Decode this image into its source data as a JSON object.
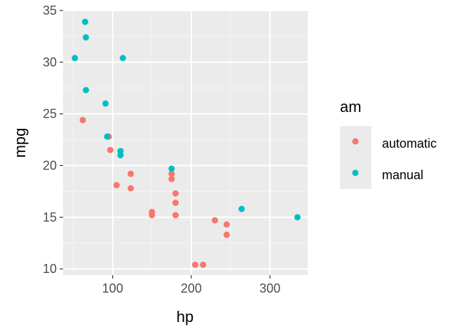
{
  "chart_data": {
    "type": "scatter",
    "xlabel": "hp",
    "ylabel": "mpg",
    "xlim": [
      37,
      348
    ],
    "ylim": [
      9.4,
      35.0
    ],
    "xticks": [
      100,
      200,
      300
    ],
    "yticks": [
      10,
      15,
      20,
      25,
      30,
      35
    ],
    "grid": true,
    "legend": {
      "title": "am",
      "position": "right",
      "entries": [
        {
          "label": "automatic",
          "color": "#F8766D"
        },
        {
          "label": "manual",
          "color": "#00BFC4"
        }
      ]
    },
    "series": [
      {
        "name": "automatic",
        "color": "#F8766D",
        "points": [
          [
            110,
            21.4
          ],
          [
            175,
            18.7
          ],
          [
            105,
            18.1
          ],
          [
            245,
            14.3
          ],
          [
            62,
            24.4
          ],
          [
            95,
            22.8
          ],
          [
            123,
            19.2
          ],
          [
            123,
            17.8
          ],
          [
            180,
            16.4
          ],
          [
            180,
            17.3
          ],
          [
            180,
            15.2
          ],
          [
            205,
            10.4
          ],
          [
            215,
            10.4
          ],
          [
            97,
            21.5
          ],
          [
            150,
            15.5
          ],
          [
            150,
            15.2
          ],
          [
            245,
            13.3
          ],
          [
            175,
            19.2
          ],
          [
            230,
            14.7
          ]
        ]
      },
      {
        "name": "manual",
        "color": "#00BFC4",
        "points": [
          [
            110,
            21.0
          ],
          [
            110,
            21.4
          ],
          [
            93,
            22.8
          ],
          [
            66,
            32.4
          ],
          [
            52,
            30.4
          ],
          [
            65,
            33.9
          ],
          [
            66,
            27.3
          ],
          [
            91,
            26.0
          ],
          [
            113,
            30.4
          ],
          [
            264,
            15.8
          ],
          [
            175,
            19.7
          ],
          [
            335,
            15.0
          ]
        ]
      }
    ]
  }
}
